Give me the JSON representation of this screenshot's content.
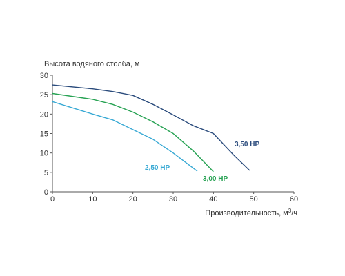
{
  "chart_data": {
    "type": "line",
    "ylabel": "Высота водяного столба, м",
    "xlabel_prefix": "Производительность, м",
    "xlabel_sup": "3",
    "xlabel_suffix": "/ч",
    "xlim": [
      0,
      60
    ],
    "ylim": [
      0,
      30
    ],
    "xticks": [
      0,
      10,
      20,
      30,
      40,
      50,
      60
    ],
    "yticks": [
      0,
      5,
      10,
      15,
      20,
      25,
      30
    ],
    "grid": false,
    "series": [
      {
        "name": "3,50 HP",
        "color": "#2a4b7c",
        "points": [
          [
            0,
            27.5
          ],
          [
            10,
            26.5
          ],
          [
            15,
            25.8
          ],
          [
            20,
            24.8
          ],
          [
            25,
            22.5
          ],
          [
            30,
            19.8
          ],
          [
            35,
            17.0
          ],
          [
            40,
            15.0
          ],
          [
            45,
            9.5
          ],
          [
            49,
            5.5
          ]
        ]
      },
      {
        "name": "3,00 HP",
        "color": "#27a253",
        "points": [
          [
            0,
            25.3
          ],
          [
            10,
            23.8
          ],
          [
            15,
            22.5
          ],
          [
            20,
            20.5
          ],
          [
            25,
            18.0
          ],
          [
            30,
            15.0
          ],
          [
            35,
            10.5
          ],
          [
            40,
            5.2
          ]
        ]
      },
      {
        "name": "2,50 HP",
        "color": "#38a9d4",
        "points": [
          [
            0,
            23.2
          ],
          [
            10,
            20.0
          ],
          [
            15,
            18.5
          ],
          [
            20,
            16.0
          ],
          [
            25,
            13.5
          ],
          [
            30,
            10.0
          ],
          [
            36,
            5.3
          ]
        ]
      }
    ]
  }
}
